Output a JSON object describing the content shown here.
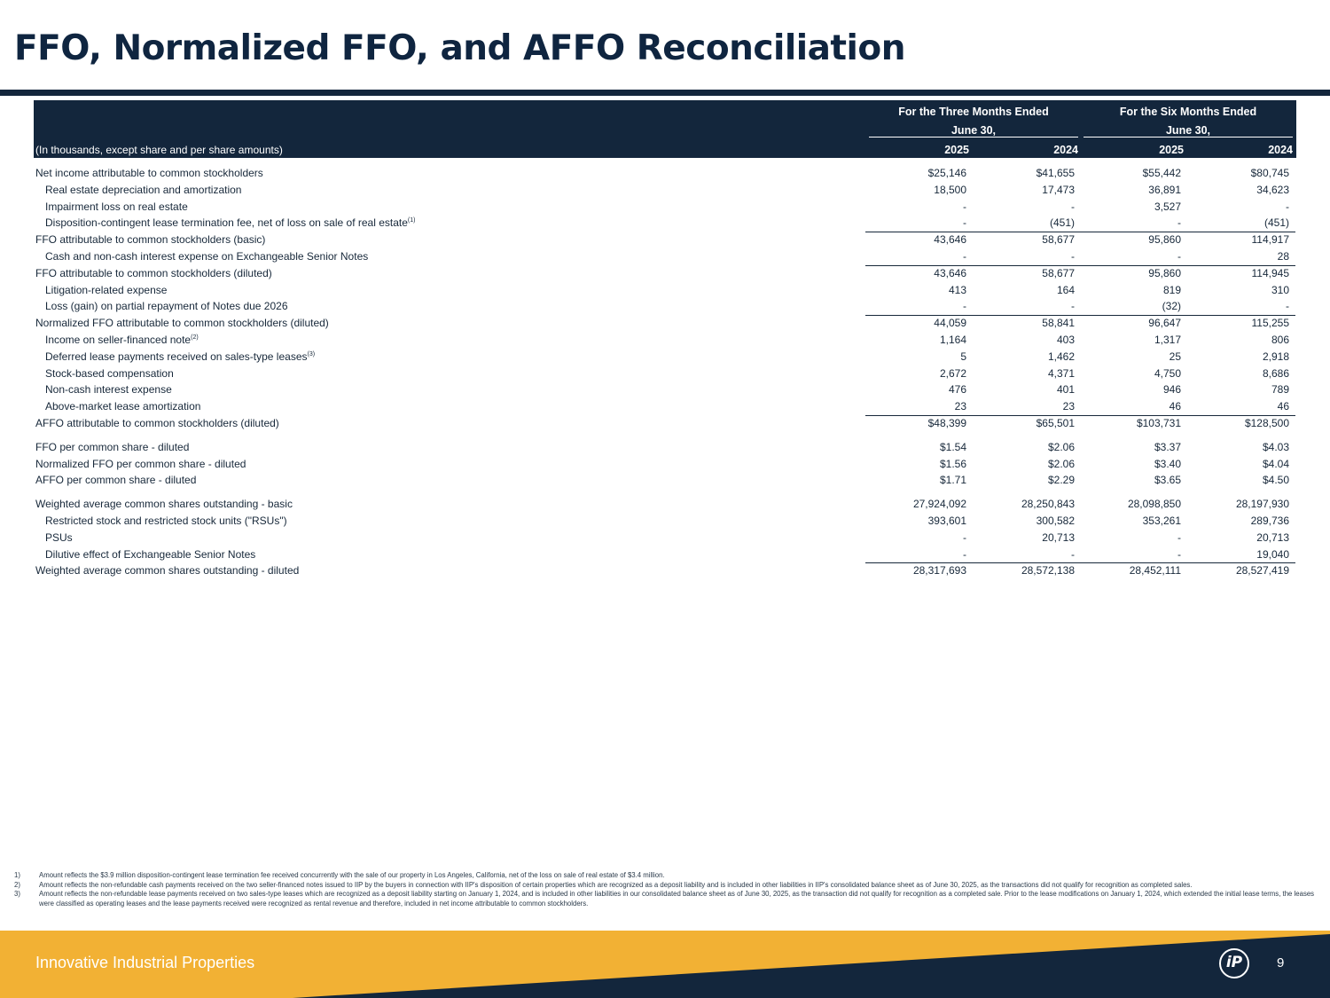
{
  "title": "FFO, Normalized FFO, and AFFO Reconciliation",
  "header": {
    "group1_line1": "For the Three Months Ended",
    "group1_line2": "June 30,",
    "group2_line1": "For the Six Months Ended",
    "group2_line2": "June 30,",
    "units": "(In thousands, except share and per share amounts)",
    "years": [
      "2025",
      "2024",
      "2025",
      "2024"
    ]
  },
  "rows": [
    {
      "label": "Net income attributable to common stockholders",
      "values": [
        "$25,146",
        "$41,655",
        "$55,442",
        "$80,745"
      ]
    },
    {
      "label": "Real estate depreciation and amortization",
      "values": [
        "18,500",
        "17,473",
        "36,891",
        "34,623"
      ]
    },
    {
      "label": "Impairment loss on real estate",
      "values": [
        "-",
        "-",
        "3,527",
        "-"
      ]
    },
    {
      "label": "Disposition-contingent lease termination fee, net of loss on sale of real estate",
      "note": "(1)",
      "values": [
        "-",
        "(451)",
        "-",
        "(451)"
      ]
    },
    {
      "label": "FFO attributable to common stockholders (basic)",
      "values": [
        "43,646",
        "58,677",
        "95,860",
        "114,917"
      ]
    },
    {
      "label": "Cash and non-cash interest expense on Exchangeable Senior Notes",
      "values": [
        "-",
        "-",
        "-",
        "28"
      ]
    },
    {
      "label": "FFO attributable to common stockholders (diluted)",
      "values": [
        "43,646",
        "58,677",
        "95,860",
        "114,945"
      ]
    },
    {
      "label": "Litigation-related expense",
      "values": [
        "413",
        "164",
        "819",
        "310"
      ]
    },
    {
      "label": "Loss (gain) on partial repayment of Notes due 2026",
      "values": [
        "-",
        "-",
        "(32)",
        "-"
      ]
    },
    {
      "label": "Normalized FFO attributable to common stockholders (diluted)",
      "values": [
        "44,059",
        "58,841",
        "96,647",
        "115,255"
      ]
    },
    {
      "label": "Income on seller-financed note",
      "note": "(2)",
      "values": [
        "1,164",
        "403",
        "1,317",
        "806"
      ]
    },
    {
      "label": "Deferred lease payments received on sales-type leases",
      "note": "(3)",
      "values": [
        "5",
        "1,462",
        "25",
        "2,918"
      ]
    },
    {
      "label": "Stock-based compensation",
      "values": [
        "2,672",
        "4,371",
        "4,750",
        "8,686"
      ]
    },
    {
      "label": "Non-cash interest expense",
      "values": [
        "476",
        "401",
        "946",
        "789"
      ]
    },
    {
      "label": "Above-market lease amortization",
      "values": [
        "23",
        "23",
        "46",
        "46"
      ]
    },
    {
      "label": "AFFO attributable to common stockholders (diluted)",
      "values": [
        "$48,399",
        "$65,501",
        "$103,731",
        "$128,500"
      ]
    },
    {
      "label": "FFO per common share - diluted",
      "values": [
        "$1.54",
        "$2.06",
        "$3.37",
        "$4.03"
      ]
    },
    {
      "label": "Normalized FFO per common share - diluted",
      "values": [
        "$1.56",
        "$2.06",
        "$3.40",
        "$4.04"
      ]
    },
    {
      "label": "AFFO per common share - diluted",
      "values": [
        "$1.71",
        "$2.29",
        "$3.65",
        "$4.50"
      ]
    },
    {
      "label": "Weighted average common shares outstanding - basic",
      "values": [
        "27,924,092",
        "28,250,843",
        "28,098,850",
        "28,197,930"
      ]
    },
    {
      "label": "Restricted stock and restricted stock units (\"RSUs\")",
      "values": [
        "393,601",
        "300,582",
        "353,261",
        "289,736"
      ]
    },
    {
      "label": "PSUs",
      "values": [
        "-",
        "20,713",
        "-",
        "20,713"
      ]
    },
    {
      "label": "Dilutive effect of Exchangeable Senior Notes",
      "values": [
        "-",
        "-",
        "-",
        "19,040"
      ]
    },
    {
      "label": "Weighted average common shares outstanding - diluted",
      "values": [
        "28,317,693",
        "28,572,138",
        "28,452,111",
        "28,527,419"
      ]
    }
  ],
  "footnotes": [
    {
      "num": "1)",
      "text": "Amount reflects the $3.9 million disposition-contingent lease termination fee received concurrently with the sale of our property in Los Angeles, California, net of the loss on sale of real estate of $3.4 million."
    },
    {
      "num": "2)",
      "text": "Amount reflects the non-refundable cash payments received on the two seller-financed notes issued to IIP by the buyers in connection with IIP's disposition of certain properties which are recognized as a deposit liability and is included in other liabilities in IIP's consolidated balance sheet as of June 30, 2025, as the transactions did not qualify for recognition as completed sales."
    },
    {
      "num": "3)",
      "text": "Amount reflects the non-refundable lease payments received on two sales-type leases which are recognized as a deposit liability starting on January 1, 2024, and is included in other liabilities in our consolidated balance sheet as of June 30, 2025, as the transaction did not qualify for recognition as a completed sale. Prior to the lease modifications on January 1, 2024, which extended the initial lease terms, the leases were classified as operating leases and the lease payments received were recognized as rental revenue and therefore, included in net income attributable to common stockholders."
    }
  ],
  "footer": {
    "company": "Innovative Industrial Properties",
    "logo_text": "iP",
    "page": "9",
    "colors": {
      "navy": "#13263c",
      "gold": "#f2b134"
    }
  }
}
